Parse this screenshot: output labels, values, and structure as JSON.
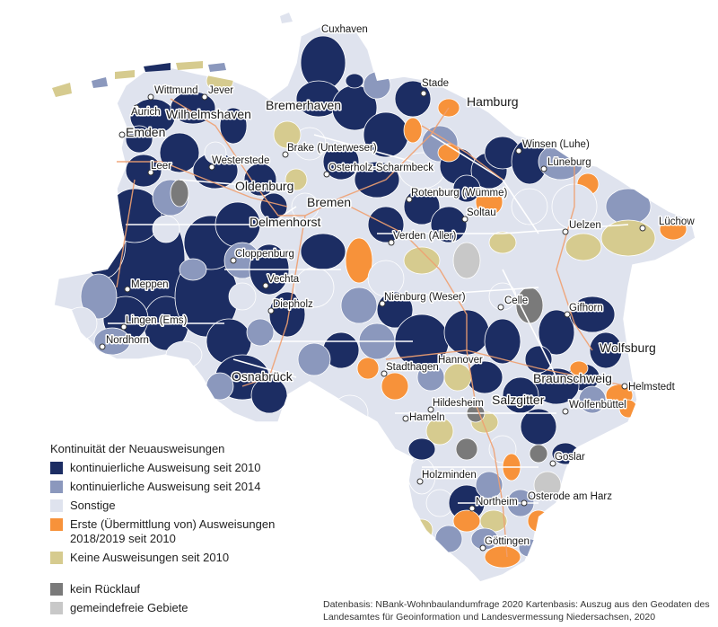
{
  "legend": {
    "title": "Kontinuität der Neuausweisungen",
    "items": [
      {
        "label": "kontinuierliche Ausweisung seit 2010",
        "color": "#1c2d63"
      },
      {
        "label": "kontinuierliche Ausweisung seit 2014",
        "color": "#8b98bd"
      },
      {
        "label": "Sonstige",
        "color": "#dfe3ee"
      },
      {
        "label": "Erste (Übermittlung von) Ausweisungen 2018/2019 seit 2010",
        "color": "#f7923a"
      },
      {
        "label": "Keine Ausweisungen seit 2010",
        "color": "#d6cb8f"
      }
    ],
    "items2": [
      {
        "label": "kein Rücklauf",
        "color": "#7a7a7a"
      },
      {
        "label": "gemeindefreie Gebiete",
        "color": "#c8c8c8"
      }
    ]
  },
  "source": {
    "line1": "Datenbasis: NBank-Wohnbaulandumfrage 2020 Kartenbasis: Auszug aus den Geodaten des",
    "line2": "Landesamtes für Geoinformation und Landesvermessung Niedersachsen, 2020"
  },
  "cities": [
    {
      "name": "Cuxhaven",
      "big": false
    },
    {
      "name": "Stade",
      "big": false
    },
    {
      "name": "Hamburg",
      "big": true
    },
    {
      "name": "Wittmund",
      "big": false
    },
    {
      "name": "Jever",
      "big": false
    },
    {
      "name": "Aurich",
      "big": false
    },
    {
      "name": "Wilhelmshaven",
      "big": true
    },
    {
      "name": "Bremerhaven",
      "big": true
    },
    {
      "name": "Emden",
      "big": true
    },
    {
      "name": "Brake (Unterweser)",
      "big": false
    },
    {
      "name": "Winsen (Luhe)",
      "big": false
    },
    {
      "name": "Leer",
      "big": false
    },
    {
      "name": "Westerstede",
      "big": false
    },
    {
      "name": "Osterholz-Scharmbeck",
      "big": false
    },
    {
      "name": "Lüneburg",
      "big": false
    },
    {
      "name": "Oldenburg",
      "big": true
    },
    {
      "name": "Rotenburg (Wümme)",
      "big": false
    },
    {
      "name": "Bremen",
      "big": true
    },
    {
      "name": "Soltau",
      "big": false
    },
    {
      "name": "Lüchow",
      "big": false
    },
    {
      "name": "Delmenhorst",
      "big": true
    },
    {
      "name": "Uelzen",
      "big": false
    },
    {
      "name": "Verden (Aller)",
      "big": false
    },
    {
      "name": "Cloppenburg",
      "big": false
    },
    {
      "name": "Meppen",
      "big": false
    },
    {
      "name": "Vechta",
      "big": false
    },
    {
      "name": "Nienburg (Weser)",
      "big": false
    },
    {
      "name": "Celle",
      "big": false
    },
    {
      "name": "Diepholz",
      "big": false
    },
    {
      "name": "Gifhorn",
      "big": false
    },
    {
      "name": "Lingen (Ems)",
      "big": false
    },
    {
      "name": "Nordhorn",
      "big": false
    },
    {
      "name": "Wolfsburg",
      "big": true
    },
    {
      "name": "Hannover",
      "big": false
    },
    {
      "name": "Stadthagen",
      "big": false
    },
    {
      "name": "Osnabrück",
      "big": true
    },
    {
      "name": "Braunschweig",
      "big": true
    },
    {
      "name": "Helmstedt",
      "big": false
    },
    {
      "name": "Hildesheim",
      "big": false
    },
    {
      "name": "Salzgitter",
      "big": true
    },
    {
      "name": "Wolfenbüttel",
      "big": false
    },
    {
      "name": "Hameln",
      "big": false
    },
    {
      "name": "Goslar",
      "big": false
    },
    {
      "name": "Holzminden",
      "big": false
    },
    {
      "name": "Osterode am Harz",
      "big": false
    },
    {
      "name": "Northeim",
      "big": false
    },
    {
      "name": "Göttingen",
      "big": false
    }
  ]
}
